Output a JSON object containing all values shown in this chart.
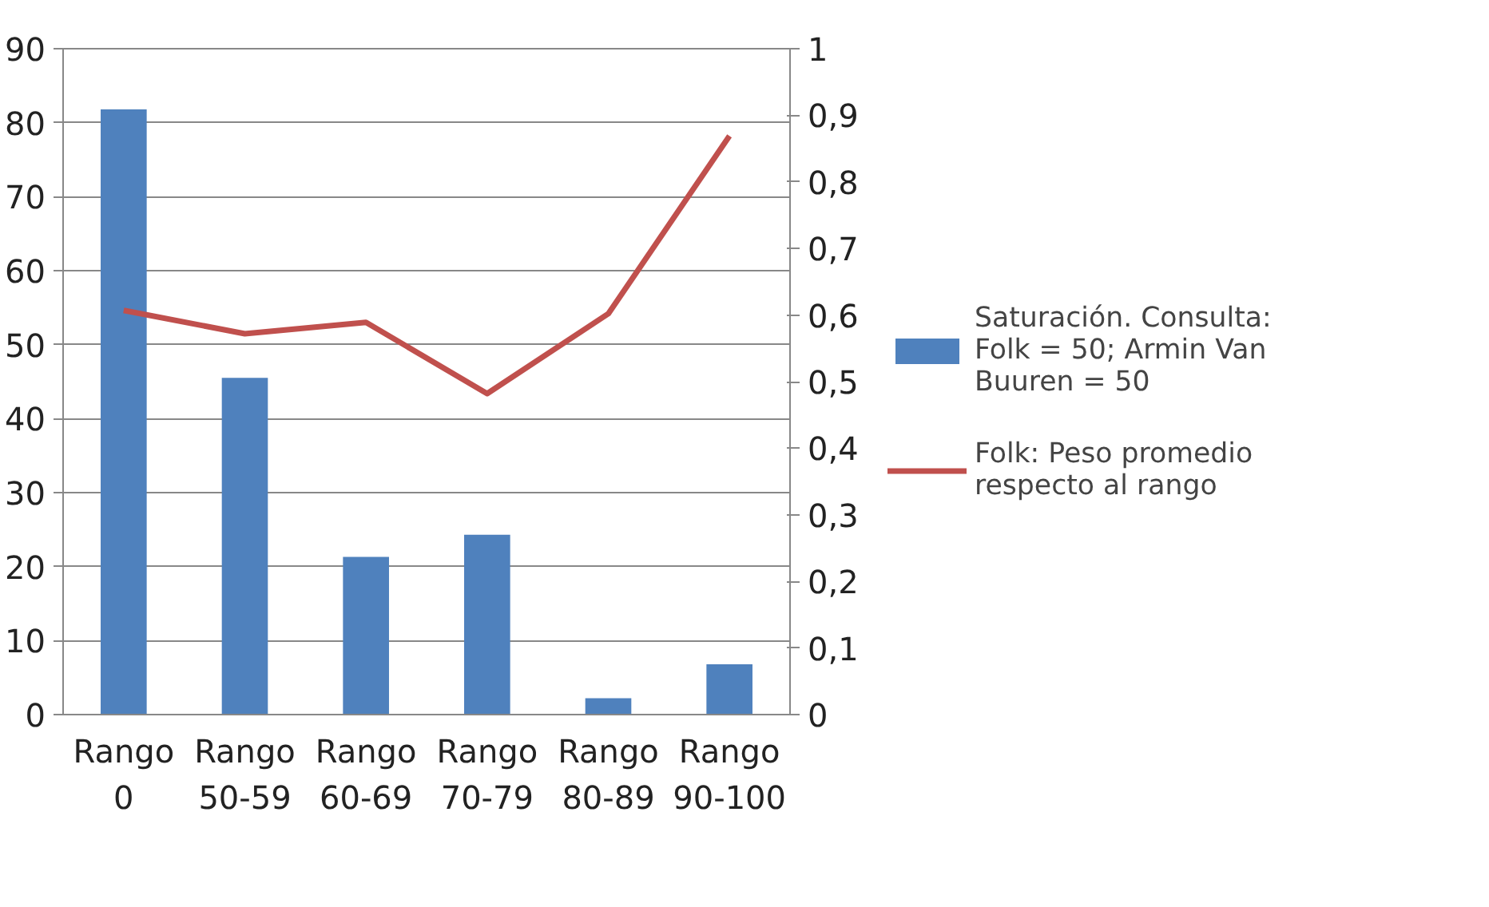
{
  "chart_data": {
    "type": "bar",
    "categories": [
      "Rango 0",
      "Rango 50-59",
      "Rango 60-69",
      "Rango 70-79",
      "Rango 80-89",
      "Rango 90-100"
    ],
    "series": [
      {
        "name": "Saturación. Consulta: Folk = 50; Armin Van Buuren = 50",
        "type": "bar",
        "color": "#4f81bd",
        "values": [
          81.8,
          45.5,
          21.3,
          24.3,
          2.2,
          6.8
        ]
      },
      {
        "name": "Folk: Peso promedio respecto al rango",
        "type": "line",
        "axis": "y2",
        "color": "#c0504d",
        "values": [
          0.607,
          0.572,
          0.589,
          0.482,
          0.602,
          0.869
        ]
      }
    ],
    "ylim": [
      0,
      90
    ],
    "yticks": [
      0,
      10,
      20,
      30,
      40,
      50,
      60,
      70,
      80,
      90
    ],
    "y2lim": [
      0,
      1
    ],
    "y2ticks": [
      {
        "value": 0,
        "label": "0"
      },
      {
        "value": 0.1,
        "label": "0,1"
      },
      {
        "value": 0.2,
        "label": "0,2"
      },
      {
        "value": 0.3,
        "label": "0,3"
      },
      {
        "value": 0.4,
        "label": "0,4"
      },
      {
        "value": 0.5,
        "label": "0,5"
      },
      {
        "value": 0.6,
        "label": "0,6"
      },
      {
        "value": 0.7,
        "label": "0,7"
      },
      {
        "value": 0.8,
        "label": "0,8"
      },
      {
        "value": 0.9,
        "label": "0,9"
      },
      {
        "value": 1,
        "label": "1"
      }
    ],
    "grid": "y",
    "legend": "right",
    "marker": "none",
    "line_style": "solid"
  }
}
